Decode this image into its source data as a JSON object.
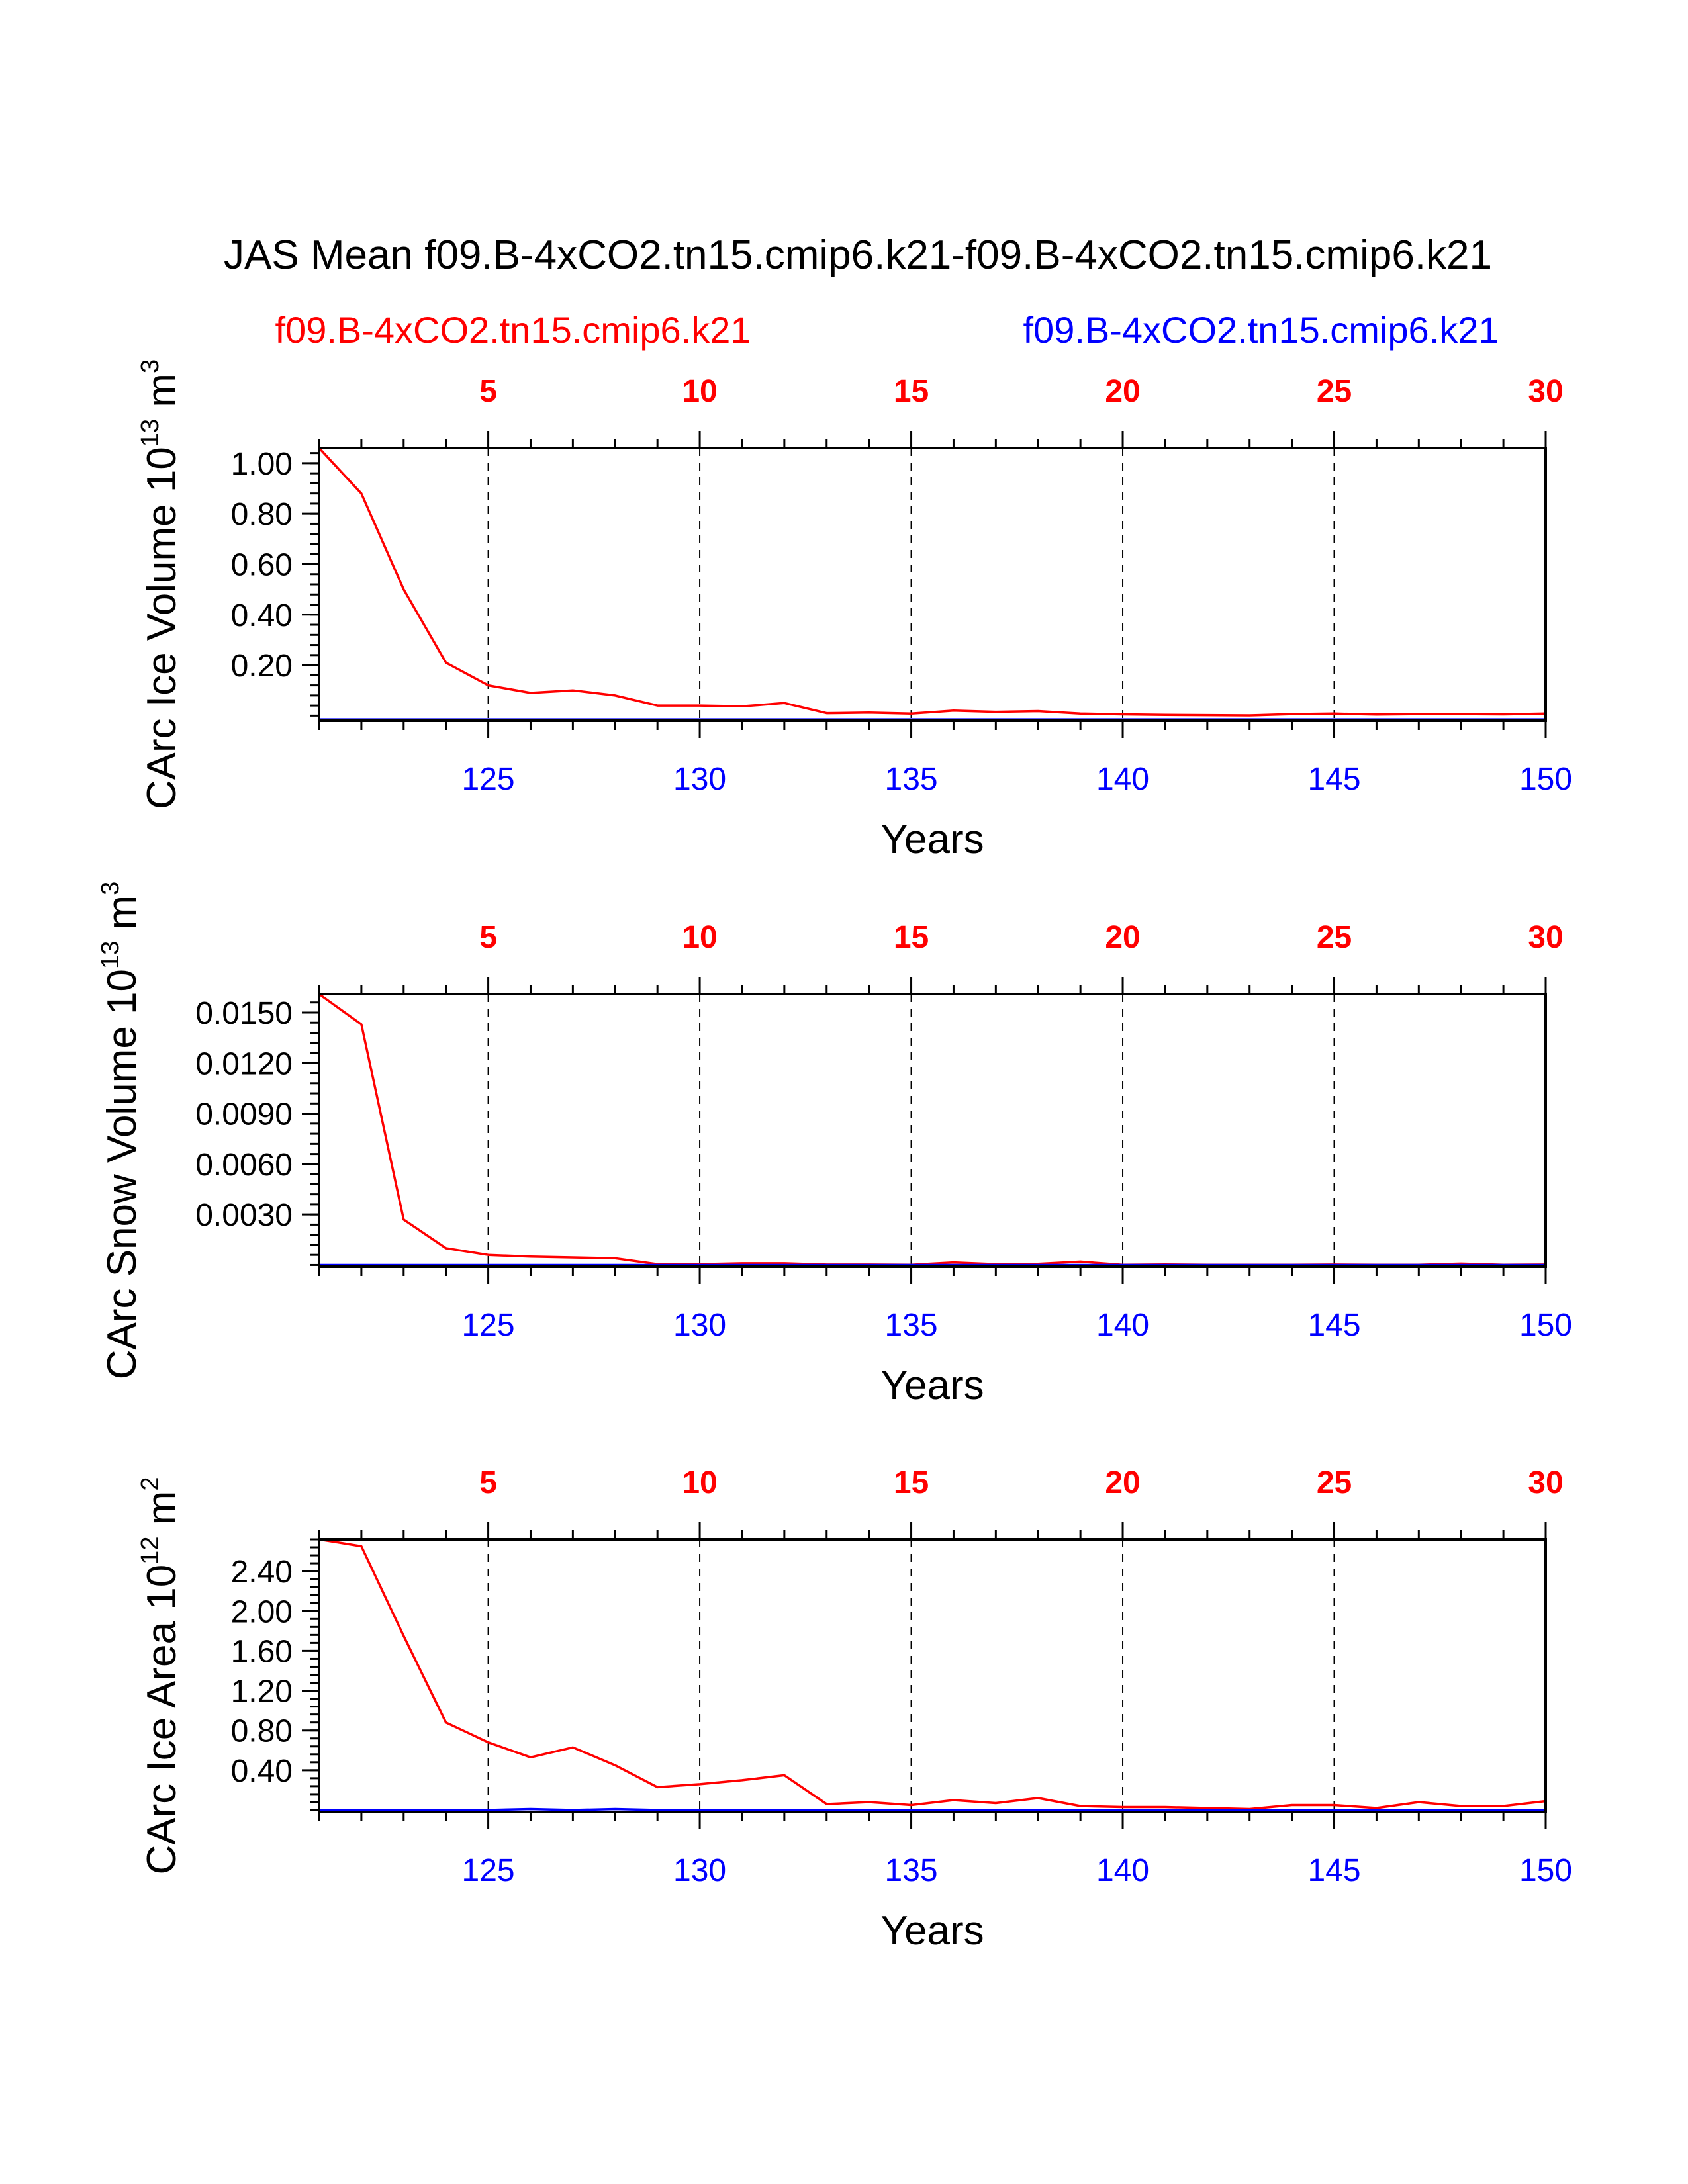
{
  "figure": {
    "title": "JAS Mean f09.B-4xCO2.tn15.cmip6.k21-f09.B-4xCO2.tn15.cmip6.k21",
    "legend_red": "f09.B-4xCO2.tn15.cmip6.k21",
    "legend_blue": "f09.B-4xCO2.tn15.cmip6.k21",
    "colors": {
      "red": "#ff0000",
      "blue": "#0000ff",
      "axis": "#000000",
      "grid": "#000000"
    }
  },
  "chart_data": [
    {
      "type": "line",
      "ylabel": "CArc Ice Volume 10",
      "ylabel_exp": "13",
      "ylabel_unit": " m",
      "ylabel_unit_exp": "3",
      "xlabel": "Years",
      "xlim": [
        121,
        150
      ],
      "ylim": [
        -0.02,
        1.06
      ],
      "yticks": [
        0.2,
        0.4,
        0.6,
        0.8,
        1.0
      ],
      "ytick_labels": [
        "0.20",
        "0.40",
        "0.60",
        "0.80",
        "1.00"
      ],
      "yminor_step": 0.04,
      "xticks_bottom": [
        125,
        130,
        135,
        140,
        145,
        150
      ],
      "xticks_top": [
        5,
        10,
        15,
        20,
        25,
        30
      ],
      "x": [
        121,
        122,
        123,
        124,
        125,
        126,
        127,
        128,
        129,
        130,
        131,
        132,
        133,
        134,
        135,
        136,
        137,
        138,
        139,
        140,
        141,
        142,
        143,
        144,
        145,
        146,
        147,
        148,
        149,
        150
      ],
      "series": [
        {
          "name": "f09.B-4xCO2.tn15.cmip6.k21",
          "color": "#ff0000",
          "values": [
            1.06,
            0.88,
            0.5,
            0.21,
            0.12,
            0.09,
            0.1,
            0.08,
            0.04,
            0.04,
            0.037,
            0.05,
            0.01,
            0.012,
            0.008,
            0.02,
            0.015,
            0.018,
            0.008,
            0.005,
            0.003,
            0.002,
            0.001,
            0.006,
            0.008,
            0.004,
            0.006,
            0.006,
            0.005,
            0.008
          ]
        },
        {
          "name": "f09.B-4xCO2.tn15.cmip6.k21",
          "color": "#0000ff",
          "values": [
            -0.015,
            -0.015,
            -0.015,
            -0.015,
            -0.015,
            -0.015,
            -0.015,
            -0.015,
            -0.015,
            -0.015,
            -0.015,
            -0.015,
            -0.015,
            -0.015,
            -0.015,
            -0.015,
            -0.015,
            -0.015,
            -0.015,
            -0.015,
            -0.015,
            -0.015,
            -0.015,
            -0.015,
            -0.015,
            -0.015,
            -0.015,
            -0.015,
            -0.015,
            -0.015
          ]
        }
      ]
    },
    {
      "type": "line",
      "ylabel": "CArc Snow Volume 10",
      "ylabel_exp": "13",
      "ylabel_unit": " m",
      "ylabel_unit_exp": "3",
      "xlabel": "Years",
      "xlim": [
        121,
        150
      ],
      "ylim": [
        -0.0001,
        0.0161
      ],
      "yticks": [
        0.003,
        0.006,
        0.009,
        0.012,
        0.015
      ],
      "ytick_labels": [
        "0.0030",
        "0.0060",
        "0.0090",
        "0.0120",
        "0.0150"
      ],
      "yminor_step": 0.0006,
      "xticks_bottom": [
        125,
        130,
        135,
        140,
        145,
        150
      ],
      "xticks_top": [
        5,
        10,
        15,
        20,
        25,
        30
      ],
      "x": [
        121,
        122,
        123,
        124,
        125,
        126,
        127,
        128,
        129,
        130,
        131,
        132,
        133,
        134,
        135,
        136,
        137,
        138,
        139,
        140,
        141,
        142,
        143,
        144,
        145,
        146,
        147,
        148,
        149,
        150
      ],
      "series": [
        {
          "name": "f09.B-4xCO2.tn15.cmip6.k21",
          "color": "#ff0000",
          "values": [
            0.0161,
            0.0143,
            0.0027,
            0.001,
            0.0006,
            0.0005,
            0.00045,
            0.0004,
            5e-05,
            5e-05,
            0.0001,
            0.0001,
            2e-05,
            2e-05,
            1e-05,
            0.00015,
            5e-05,
            7e-05,
            0.0002,
            1e-05,
            3e-05,
            1e-05,
            1e-05,
            1e-05,
            2e-05,
            1e-05,
            1e-05,
            8e-05,
            1e-05,
            2e-05
          ]
        },
        {
          "name": "f09.B-4xCO2.tn15.cmip6.k21",
          "color": "#0000ff",
          "values": [
            0,
            0,
            0,
            0,
            0,
            0,
            0,
            0,
            0,
            0,
            0,
            0,
            0,
            0,
            0,
            0,
            0,
            0,
            0,
            0,
            0,
            0,
            0,
            0,
            0,
            0,
            0,
            0,
            0,
            0
          ]
        }
      ]
    },
    {
      "type": "line",
      "ylabel": "CArc Ice Area 10",
      "ylabel_exp": "12",
      "ylabel_unit": " m",
      "ylabel_unit_exp": "2",
      "xlabel": "Years",
      "xlim": [
        121,
        150
      ],
      "ylim": [
        -0.02,
        2.72
      ],
      "yticks": [
        0.4,
        0.8,
        1.2,
        1.6,
        2.0,
        2.4
      ],
      "ytick_labels": [
        "0.40",
        "0.80",
        "1.20",
        "1.60",
        "2.00",
        "2.40"
      ],
      "yminor_step": 0.08,
      "xticks_bottom": [
        125,
        130,
        135,
        140,
        145,
        150
      ],
      "xticks_top": [
        5,
        10,
        15,
        20,
        25,
        30
      ],
      "x": [
        121,
        122,
        123,
        124,
        125,
        126,
        127,
        128,
        129,
        130,
        131,
        132,
        133,
        134,
        135,
        136,
        137,
        138,
        139,
        140,
        141,
        142,
        143,
        144,
        145,
        146,
        147,
        148,
        149,
        150
      ],
      "series": [
        {
          "name": "f09.B-4xCO2.tn15.cmip6.k21",
          "color": "#ff0000",
          "values": [
            2.72,
            2.65,
            1.75,
            0.88,
            0.68,
            0.53,
            0.63,
            0.45,
            0.23,
            0.26,
            0.3,
            0.35,
            0.06,
            0.08,
            0.05,
            0.1,
            0.07,
            0.12,
            0.04,
            0.03,
            0.03,
            0.02,
            0.01,
            0.05,
            0.05,
            0.02,
            0.08,
            0.04,
            0.04,
            0.09
          ]
        },
        {
          "name": "f09.B-4xCO2.tn15.cmip6.k21",
          "color": "#0000ff",
          "values": [
            0.0,
            0.0,
            0.0,
            0.0,
            0.0,
            0.01,
            0.0,
            0.01,
            0.0,
            0.0,
            0.0,
            0.0,
            0.0,
            0.0,
            0.0,
            0.0,
            0.0,
            0.0,
            0.0,
            0.0,
            0.0,
            0.0,
            0.0,
            0.0,
            0.0,
            0.0,
            0.0,
            0.0,
            0.0,
            0.0
          ]
        }
      ]
    }
  ]
}
